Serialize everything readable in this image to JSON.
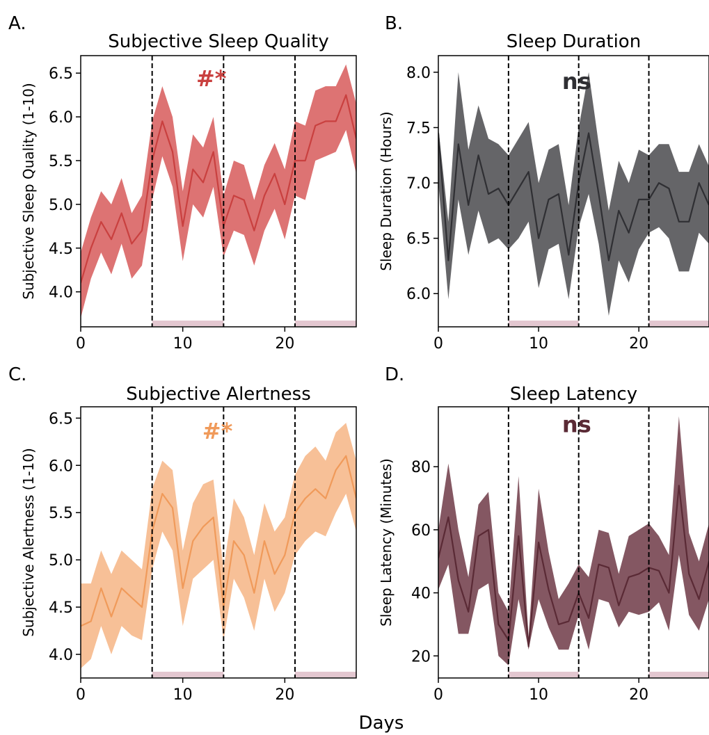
{
  "figure": {
    "xlabel": "Days"
  },
  "chart_data": [
    {
      "panel": "A.",
      "type": "area",
      "title": "Subjective Sleep Quality",
      "ylabel": "Subjective Sleep Quality (1-10)",
      "xlabel": "",
      "xlim": [
        0,
        27
      ],
      "ylim": [
        3.6,
        6.7
      ],
      "xticks": [
        0,
        10,
        20
      ],
      "yticks": [
        4.0,
        4.5,
        5.0,
        5.5,
        6.0,
        6.5
      ],
      "ytick_labels": [
        "4.0",
        "4.5",
        "5.0",
        "5.5",
        "6.0",
        "6.5"
      ],
      "vlines": [
        7,
        14,
        21
      ],
      "shaded_x_ranges": [
        [
          7,
          14
        ],
        [
          21,
          27
        ]
      ],
      "annotation": "#*",
      "annotation_pos": [
        12.8,
        6.35
      ],
      "color": "#c9403f",
      "band_color": "#d75a5a",
      "x": [
        0,
        1,
        2,
        3,
        4,
        5,
        6,
        7,
        8,
        9,
        10,
        11,
        12,
        13,
        14,
        15,
        16,
        17,
        18,
        19,
        20,
        21,
        22,
        23,
        24,
        25,
        26,
        27
      ],
      "mean": [
        4.1,
        4.5,
        4.8,
        4.6,
        4.9,
        4.55,
        4.7,
        5.5,
        5.95,
        5.6,
        4.75,
        5.4,
        5.25,
        5.6,
        4.75,
        5.1,
        5.05,
        4.7,
        5.1,
        5.35,
        5.0,
        5.5,
        5.5,
        5.9,
        5.95,
        5.95,
        6.25,
        5.75
      ],
      "lower": [
        3.7,
        4.15,
        4.45,
        4.2,
        4.55,
        4.15,
        4.3,
        5.05,
        5.55,
        5.2,
        4.35,
        5.0,
        4.85,
        5.2,
        4.4,
        4.7,
        4.65,
        4.3,
        4.7,
        4.95,
        4.6,
        5.1,
        5.05,
        5.5,
        5.55,
        5.6,
        5.85,
        5.35
      ],
      "upper": [
        4.45,
        4.85,
        5.15,
        5.0,
        5.3,
        4.9,
        5.1,
        5.95,
        6.35,
        6.0,
        5.15,
        5.8,
        5.65,
        6.0,
        5.1,
        5.5,
        5.45,
        5.05,
        5.45,
        5.7,
        5.4,
        5.95,
        5.9,
        6.3,
        6.35,
        6.35,
        6.6,
        6.15
      ]
    },
    {
      "panel": "B.",
      "type": "area",
      "title": "Sleep Duration",
      "ylabel": "Sleep Duration (Hours)",
      "xlabel": "",
      "xlim": [
        0,
        27
      ],
      "ylim": [
        5.7,
        8.15
      ],
      "xticks": [
        0,
        10,
        20
      ],
      "yticks": [
        6.0,
        6.5,
        7.0,
        7.5,
        8.0
      ],
      "ytick_labels": [
        "6.0",
        "6.5",
        "7.0",
        "7.5",
        "8.0"
      ],
      "vlines": [
        7,
        14,
        21
      ],
      "shaded_x_ranges": [
        [
          7,
          14
        ],
        [
          21,
          27
        ]
      ],
      "annotation": "ns",
      "annotation_pos": [
        13.8,
        7.85
      ],
      "color": "#2f2f33",
      "band_color": "#4a4a4e",
      "x": [
        0,
        1,
        2,
        3,
        4,
        5,
        6,
        7,
        8,
        9,
        10,
        11,
        12,
        13,
        14,
        15,
        16,
        17,
        18,
        19,
        20,
        21,
        22,
        23,
        24,
        25,
        26,
        27
      ],
      "mean": [
        7.45,
        6.3,
        7.35,
        6.8,
        7.25,
        6.9,
        6.95,
        6.8,
        6.95,
        7.1,
        6.5,
        6.85,
        6.9,
        6.35,
        7.0,
        7.45,
        6.9,
        6.3,
        6.75,
        6.55,
        6.85,
        6.85,
        7.0,
        6.95,
        6.65,
        6.65,
        7.0,
        6.8
      ],
      "lower": [
        7.0,
        5.95,
        6.85,
        6.35,
        6.75,
        6.45,
        6.5,
        6.4,
        6.5,
        6.65,
        6.05,
        6.4,
        6.45,
        5.95,
        6.6,
        6.9,
        6.45,
        5.8,
        6.3,
        6.1,
        6.4,
        6.55,
        6.6,
        6.5,
        6.2,
        6.2,
        6.55,
        6.45
      ],
      "upper": [
        7.5,
        6.65,
        8.0,
        7.3,
        7.7,
        7.4,
        7.35,
        7.25,
        7.4,
        7.55,
        7.0,
        7.3,
        7.35,
        6.8,
        7.5,
        8.0,
        7.35,
        6.75,
        7.2,
        7.0,
        7.3,
        7.25,
        7.35,
        7.35,
        7.1,
        7.1,
        7.35,
        7.15
      ]
    },
    {
      "panel": "C.",
      "type": "area",
      "title": "Subjective Alertness",
      "ylabel": "Subjective Alertness (1-10)",
      "xlabel": "",
      "xlim": [
        0,
        27
      ],
      "ylim": [
        3.75,
        6.62
      ],
      "xticks": [
        0,
        10,
        20
      ],
      "yticks": [
        4.0,
        4.5,
        5.0,
        5.5,
        6.0,
        6.5
      ],
      "ytick_labels": [
        "4.0",
        "4.5",
        "5.0",
        "5.5",
        "6.0",
        "6.5"
      ],
      "vlines": [
        7,
        14,
        21
      ],
      "shaded_x_ranges": [
        [
          7,
          14
        ],
        [
          21,
          27
        ]
      ],
      "annotation": "#*",
      "annotation_pos": [
        13.4,
        6.28
      ],
      "color": "#f09a5a",
      "band_color": "#f6b585",
      "x": [
        0,
        1,
        2,
        3,
        4,
        5,
        6,
        7,
        8,
        9,
        10,
        11,
        12,
        13,
        14,
        15,
        16,
        17,
        18,
        19,
        20,
        21,
        22,
        23,
        24,
        25,
        26,
        27
      ],
      "mean": [
        4.3,
        4.35,
        4.7,
        4.4,
        4.7,
        4.6,
        4.5,
        5.3,
        5.7,
        5.55,
        4.7,
        5.2,
        5.35,
        5.45,
        4.5,
        5.2,
        5.05,
        4.65,
        5.2,
        4.85,
        5.05,
        5.5,
        5.65,
        5.75,
        5.65,
        5.95,
        6.1,
        5.65
      ],
      "lower": [
        3.85,
        3.95,
        4.3,
        4.0,
        4.3,
        4.2,
        4.15,
        4.9,
        5.3,
        5.1,
        4.3,
        4.8,
        4.9,
        5.0,
        4.15,
        4.8,
        4.6,
        4.25,
        4.8,
        4.45,
        4.65,
        5.05,
        5.2,
        5.3,
        5.25,
        5.5,
        5.7,
        5.3
      ],
      "upper": [
        4.75,
        4.75,
        5.1,
        4.85,
        5.1,
        5.0,
        4.9,
        5.75,
        6.05,
        5.95,
        5.1,
        5.6,
        5.8,
        5.85,
        4.9,
        5.65,
        5.45,
        5.05,
        5.6,
        5.3,
        5.45,
        5.9,
        6.1,
        6.2,
        6.05,
        6.35,
        6.45,
        6.05
      ]
    },
    {
      "panel": "D.",
      "type": "area",
      "title": "Sleep Latency",
      "ylabel": "Sleep Latency (Minutes)",
      "xlabel": "",
      "xlim": [
        0,
        27
      ],
      "ylim": [
        13,
        99
      ],
      "xticks": [
        0,
        10,
        20
      ],
      "yticks": [
        20,
        40,
        60,
        80
      ],
      "ytick_labels": [
        "20",
        "40",
        "60",
        "80"
      ],
      "vlines": [
        7,
        14,
        21
      ],
      "shaded_x_ranges": [
        [
          7,
          14
        ],
        [
          21,
          27
        ]
      ],
      "annotation": "ns",
      "annotation_pos": [
        13.8,
        91
      ],
      "color": "#5a2a35",
      "band_color": "#6f3a47",
      "x": [
        0,
        1,
        2,
        3,
        4,
        5,
        6,
        7,
        8,
        9,
        10,
        11,
        12,
        13,
        14,
        15,
        16,
        17,
        18,
        19,
        20,
        21,
        22,
        23,
        24,
        25,
        26,
        27
      ],
      "mean": [
        51,
        64,
        44,
        34,
        58,
        60,
        30,
        25,
        58,
        23,
        56,
        41,
        30,
        31,
        40,
        32,
        49,
        48,
        36,
        45,
        46,
        48,
        47,
        40,
        74,
        46,
        38,
        50
      ],
      "lower": [
        41,
        49,
        27,
        27,
        41,
        43,
        20,
        17,
        38,
        22,
        38,
        29,
        22,
        22,
        33,
        22,
        38,
        37,
        29,
        34,
        33,
        34,
        37,
        28,
        52,
        33,
        28,
        38
      ],
      "upper": [
        60,
        81,
        60,
        45,
        68,
        72,
        40,
        34,
        77,
        26,
        73,
        53,
        38,
        43,
        49,
        45,
        60,
        59,
        46,
        58,
        60,
        62,
        58,
        52,
        96,
        59,
        50,
        62
      ]
    }
  ]
}
